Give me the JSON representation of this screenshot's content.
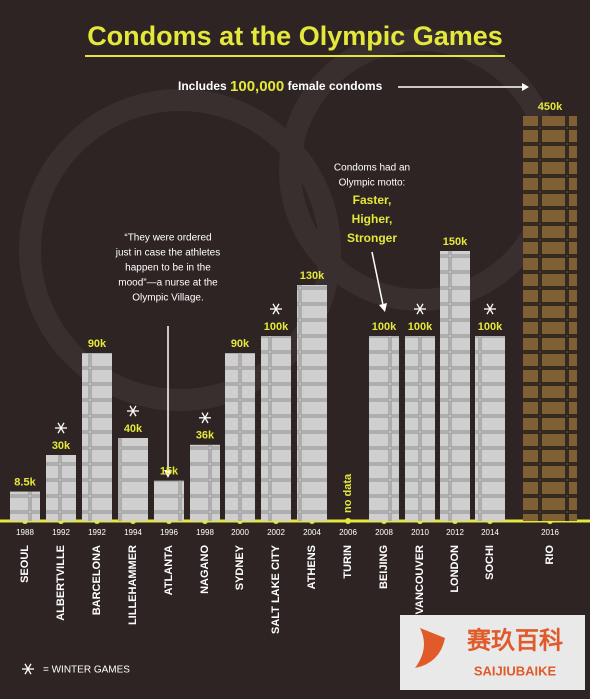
{
  "chart_data": {
    "type": "bar",
    "title": "Condoms at the Olympic Games",
    "categories": [
      "SEOUL",
      "ALBERTVILLE",
      "BARCELONA",
      "LILLEHAMMER",
      "ATLANTA",
      "NAGANO",
      "SYDNEY",
      "SALT LAKE CITY",
      "ATHENS",
      "TURIN",
      "BEIJING",
      "VANCOUVER",
      "LONDON",
      "SOCHI",
      "RIO"
    ],
    "years": [
      "1988",
      "1992",
      "1992",
      "1994",
      "1996",
      "1998",
      "2000",
      "2002",
      "2004",
      "2006",
      "2008",
      "2010",
      "2012",
      "2014",
      "2016"
    ],
    "values": [
      8500,
      30000,
      90000,
      40000,
      15000,
      36000,
      90000,
      100000,
      130000,
      null,
      100000,
      100000,
      150000,
      100000,
      450000
    ],
    "value_labels": [
      "8.5k",
      "30k",
      "90k",
      "40k",
      "15k",
      "36k",
      "90k",
      "100k",
      "130k",
      "no data",
      "100k",
      "100k",
      "150k",
      "100k",
      "450k"
    ],
    "winter": [
      false,
      true,
      false,
      true,
      false,
      true,
      false,
      true,
      false,
      true,
      false,
      true,
      false,
      true,
      false
    ],
    "colors": [
      "#cfcfcf",
      "#cfcfcf",
      "#cfcfcf",
      "#cfcfcf",
      "#cfcfcf",
      "#cfcfcf",
      "#cfcfcf",
      "#cfcfcf",
      "#cfcfcf",
      "#cfcfcf",
      "#cfcfcf",
      "#cfcfcf",
      "#cfcfcf",
      "#cfcfcf",
      "#3f8f3a"
    ],
    "female_note": [
      "Includes ",
      "100,000",
      " female condoms"
    ],
    "quote": [
      "“They were ordered",
      "just in case the athletes",
      "happen to be in the",
      "mood”—a nurse at the",
      "Olympic Village."
    ],
    "motto_intro": [
      "Condoms had an",
      "Olympic motto:"
    ],
    "motto": [
      "Faster,",
      "Higher,",
      "Stronger"
    ],
    "legend_label": "= WINTER GAMES",
    "watermark": [
      "赛玖百科",
      "SAIJIUBAIKE"
    ]
  }
}
